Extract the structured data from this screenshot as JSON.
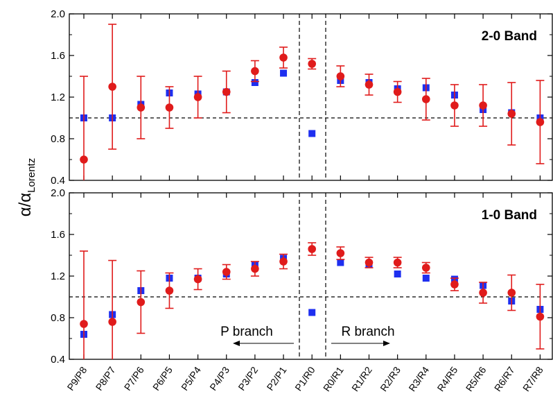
{
  "chart_data": [
    {
      "type": "scatter",
      "title": "2-0 Band",
      "ylabel": "α/α",
      "ylabel_subscript": "Lorentz",
      "ylim": [
        0.4,
        2.0
      ],
      "yticks": [
        "0.4",
        "0.8",
        "1.2",
        "1.6",
        "2.0"
      ],
      "categories": [
        "P9/P8",
        "P8/P7",
        "P7/P6",
        "P6/P5",
        "P5/P4",
        "P4/P3",
        "P3/P2",
        "P2/P1",
        "P1/R0",
        "R0/R1",
        "R1/R2",
        "R2/R3",
        "R3/R4",
        "R4/R5",
        "R5/R6",
        "R6/R7",
        "R7/R8"
      ],
      "reference_line": 1.0,
      "series": [
        {
          "marker": "circle",
          "color": "#e01b1b",
          "values": [
            0.6,
            1.3,
            1.1,
            1.1,
            1.2,
            1.25,
            1.45,
            1.58,
            1.52,
            1.4,
            1.32,
            1.25,
            1.18,
            1.12,
            1.12,
            1.04,
            0.96
          ],
          "errors": [
            0.8,
            0.6,
            0.3,
            0.2,
            0.2,
            0.2,
            0.1,
            0.1,
            0.05,
            0.1,
            0.1,
            0.1,
            0.2,
            0.2,
            0.2,
            0.3,
            0.4
          ]
        },
        {
          "marker": "square",
          "color": "#1e2ff0",
          "values": [
            1.0,
            1.0,
            1.13,
            1.24,
            1.23,
            1.25,
            1.34,
            1.43,
            0.85,
            1.36,
            1.34,
            1.28,
            1.29,
            1.22,
            1.08,
            1.05,
            1.0
          ]
        }
      ]
    },
    {
      "type": "scatter",
      "title": "1-0 Band",
      "ylim": [
        0.4,
        2.0
      ],
      "yticks": [
        "0.4",
        "0.8",
        "1.2",
        "1.6",
        "2.0"
      ],
      "categories": [
        "P9/P8",
        "P8/P7",
        "P7/P6",
        "P6/P5",
        "P5/P4",
        "P4/P3",
        "P3/P2",
        "P2/P1",
        "P1/R0",
        "R0/R1",
        "R1/R2",
        "R2/R3",
        "R3/R4",
        "R4/R5",
        "R5/R6",
        "R6/R7",
        "R7/R8"
      ],
      "reference_line": 1.0,
      "annotations": [
        "P branch",
        "R branch"
      ],
      "series": [
        {
          "marker": "circle",
          "color": "#e01b1b",
          "values": [
            0.74,
            0.76,
            0.95,
            1.06,
            1.17,
            1.24,
            1.27,
            1.34,
            1.46,
            1.42,
            1.33,
            1.33,
            1.28,
            1.12,
            1.04,
            1.04,
            0.81
          ],
          "errors": [
            0.7,
            0.59,
            0.3,
            0.17,
            0.1,
            0.07,
            0.07,
            0.07,
            0.06,
            0.06,
            0.05,
            0.05,
            0.05,
            0.06,
            0.1,
            0.17,
            0.31
          ]
        },
        {
          "marker": "square",
          "color": "#1e2ff0",
          "values": [
            0.64,
            0.83,
            1.06,
            1.18,
            1.18,
            1.22,
            1.31,
            1.37,
            0.85,
            1.33,
            1.31,
            1.22,
            1.18,
            1.17,
            1.11,
            0.96,
            0.88
          ]
        }
      ]
    }
  ]
}
